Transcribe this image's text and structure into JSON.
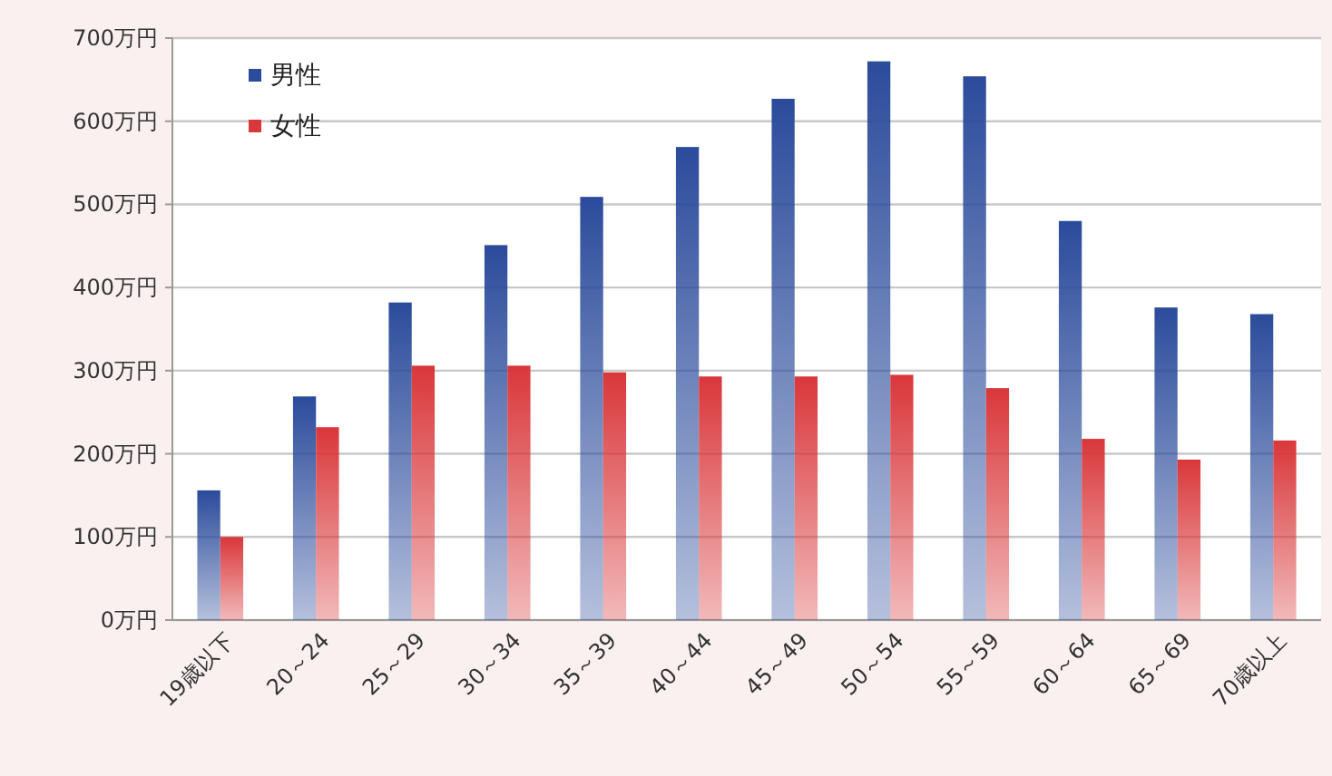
{
  "chart_data": {
    "type": "bar",
    "categories": [
      "19歳以下",
      "20～24",
      "25～29",
      "30～34",
      "35～39",
      "40～44",
      "45～49",
      "50～54",
      "55～59",
      "60～64",
      "65～69",
      "70歳以上"
    ],
    "series": [
      {
        "name": "男性",
        "color": "#2b4b9b",
        "values": [
          156,
          269,
          382,
          451,
          509,
          569,
          627,
          672,
          654,
          480,
          376,
          368
        ]
      },
      {
        "name": "女性",
        "color": "#d9373a",
        "values": [
          100,
          232,
          306,
          306,
          298,
          293,
          293,
          295,
          279,
          218,
          193,
          216
        ]
      }
    ],
    "ylim": [
      0,
      700
    ],
    "yticks": [
      {
        "value": 0,
        "label": "0万円"
      },
      {
        "value": 100,
        "label": "100万円"
      },
      {
        "value": 200,
        "label": "200万円"
      },
      {
        "value": 300,
        "label": "300万円"
      },
      {
        "value": 400,
        "label": "400万円"
      },
      {
        "value": 500,
        "label": "500万円"
      },
      {
        "value": 600,
        "label": "600万円"
      },
      {
        "value": 700,
        "label": "700万円"
      }
    ],
    "grid": "y",
    "legend": "top left"
  }
}
